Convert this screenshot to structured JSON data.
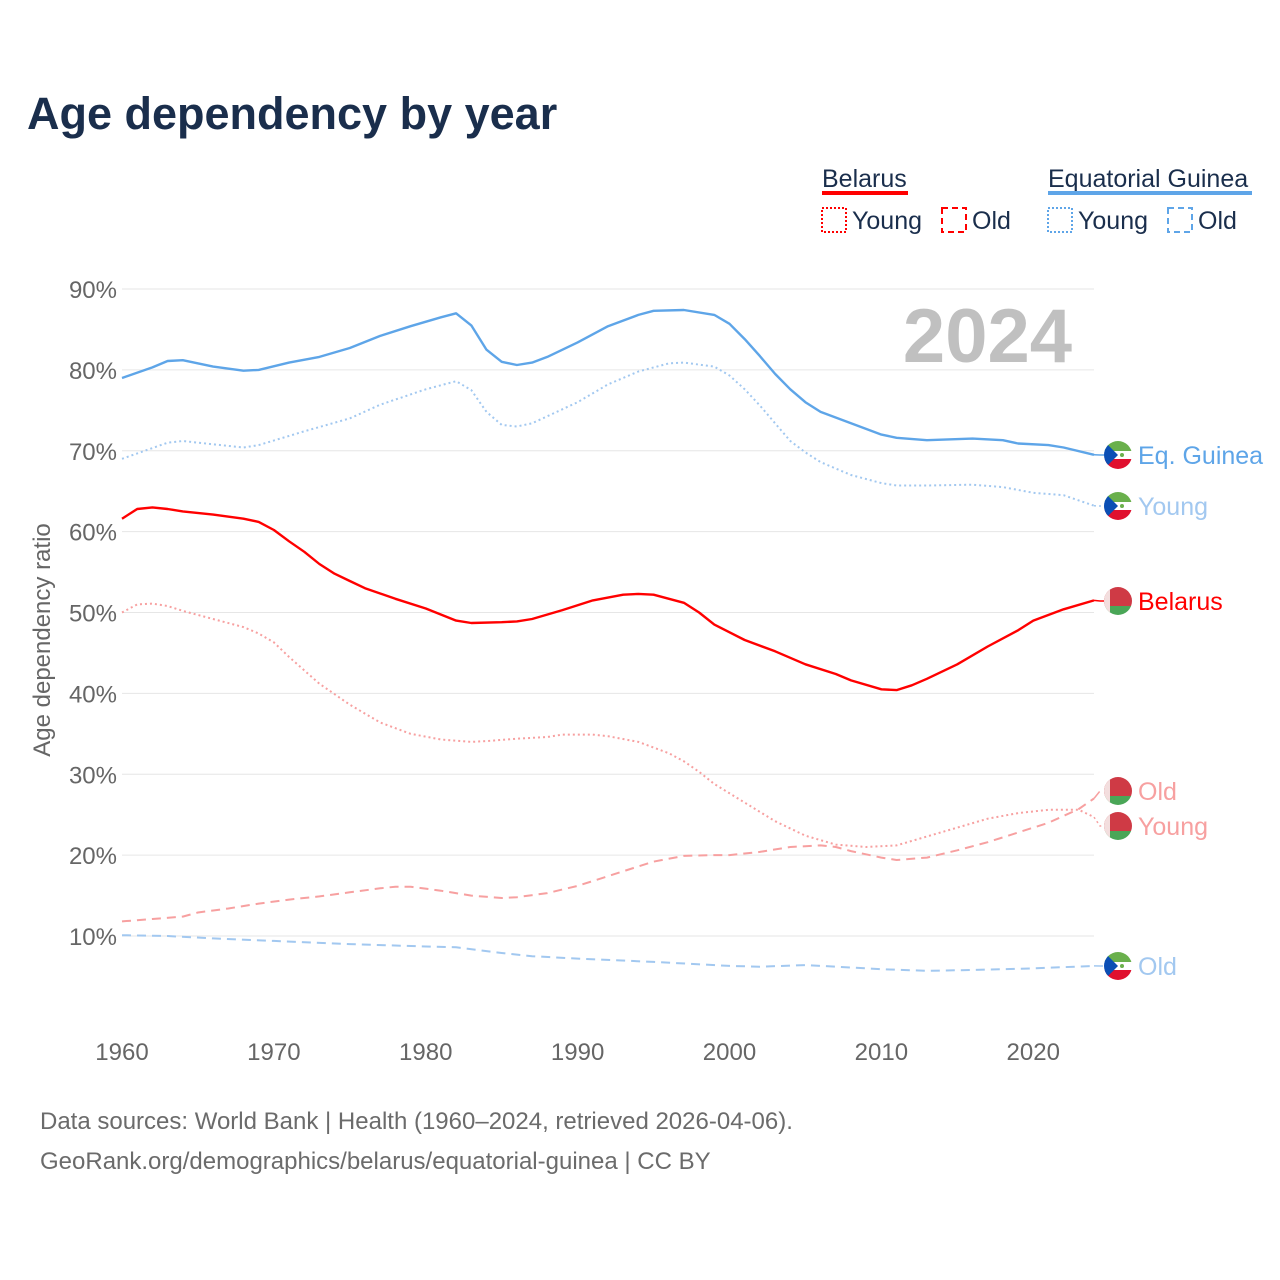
{
  "title": "Age dependency by year",
  "sources": [
    "Data sources: World Bank | Health (1960–2024, retrieved 2026-04-06).",
    "GeoRank.org/demographics/belarus/equatorial-guinea | CC BY"
  ],
  "legend": {
    "groups": [
      {
        "name": "Belarus",
        "color": "#ff0000",
        "items": [
          "Young",
          "Old"
        ]
      },
      {
        "name": "Equatorial Guinea",
        "color": "#5ea5e8",
        "items": [
          "Young",
          "Old"
        ]
      }
    ]
  },
  "chart_data": {
    "type": "line",
    "title": "Age dependency by year",
    "ylabel": "Age dependency ratio",
    "xlabel": "",
    "year_watermark": "2024",
    "xlim": [
      1960,
      2024
    ],
    "ylim": [
      0,
      90
    ],
    "xticks": [
      1960,
      1970,
      1980,
      1990,
      2000,
      2010,
      2020
    ],
    "yticks": [
      10,
      20,
      30,
      40,
      50,
      60,
      70,
      80,
      90
    ],
    "ytick_labels": [
      "10%",
      "20%",
      "30%",
      "40%",
      "50%",
      "60%",
      "70%",
      "80%",
      "90%"
    ],
    "grid": true,
    "series": [
      {
        "name": "Eq. Guinea",
        "label": "Eq. Guinea",
        "country": "Equatorial Guinea",
        "kind": "total",
        "color": "#5ea5e8",
        "dash": "solid",
        "points": [
          [
            1960,
            79.0
          ],
          [
            1962,
            80.3
          ],
          [
            1963,
            81.1
          ],
          [
            1964,
            81.2
          ],
          [
            1966,
            80.4
          ],
          [
            1968,
            79.9
          ],
          [
            1969,
            80.0
          ],
          [
            1971,
            80.9
          ],
          [
            1973,
            81.6
          ],
          [
            1975,
            82.7
          ],
          [
            1977,
            84.2
          ],
          [
            1979,
            85.4
          ],
          [
            1981,
            86.5
          ],
          [
            1982,
            87.0
          ],
          [
            1983,
            85.5
          ],
          [
            1984,
            82.5
          ],
          [
            1985,
            81.0
          ],
          [
            1986,
            80.6
          ],
          [
            1987,
            80.9
          ],
          [
            1988,
            81.6
          ],
          [
            1990,
            83.4
          ],
          [
            1992,
            85.4
          ],
          [
            1994,
            86.8
          ],
          [
            1995,
            87.3
          ],
          [
            1997,
            87.4
          ],
          [
            1999,
            86.8
          ],
          [
            2000,
            85.7
          ],
          [
            2001,
            83.8
          ],
          [
            2002,
            81.7
          ],
          [
            2003,
            79.5
          ],
          [
            2004,
            77.6
          ],
          [
            2005,
            76.0
          ],
          [
            2006,
            74.8
          ],
          [
            2008,
            73.4
          ],
          [
            2010,
            72.0
          ],
          [
            2011,
            71.6
          ],
          [
            2013,
            71.3
          ],
          [
            2016,
            71.5
          ],
          [
            2018,
            71.3
          ],
          [
            2019,
            70.9
          ],
          [
            2021,
            70.7
          ],
          [
            2022,
            70.4
          ],
          [
            2024,
            69.5
          ]
        ]
      },
      {
        "name": "Eq. Guinea Young",
        "label": "Young",
        "country": "Equatorial Guinea",
        "kind": "young",
        "color": "#a2c8f0",
        "dash": "dotted",
        "points": [
          [
            1960,
            69.0
          ],
          [
            1963,
            71.0
          ],
          [
            1964,
            71.2
          ],
          [
            1966,
            70.8
          ],
          [
            1968,
            70.4
          ],
          [
            1969,
            70.7
          ],
          [
            1972,
            72.4
          ],
          [
            1975,
            74.0
          ],
          [
            1977,
            75.7
          ],
          [
            1980,
            77.6
          ],
          [
            1982,
            78.6
          ],
          [
            1983,
            77.5
          ],
          [
            1984,
            74.8
          ],
          [
            1985,
            73.2
          ],
          [
            1986,
            73.0
          ],
          [
            1987,
            73.4
          ],
          [
            1990,
            76.0
          ],
          [
            1992,
            78.2
          ],
          [
            1994,
            79.8
          ],
          [
            1996,
            80.8
          ],
          [
            1997,
            80.9
          ],
          [
            1999,
            80.4
          ],
          [
            2000,
            79.3
          ],
          [
            2001,
            77.6
          ],
          [
            2002,
            75.6
          ],
          [
            2003,
            73.4
          ],
          [
            2004,
            71.2
          ],
          [
            2005,
            69.8
          ],
          [
            2006,
            68.6
          ],
          [
            2008,
            67.0
          ],
          [
            2010,
            66.0
          ],
          [
            2011,
            65.7
          ],
          [
            2013,
            65.7
          ],
          [
            2016,
            65.8
          ],
          [
            2018,
            65.5
          ],
          [
            2020,
            64.8
          ],
          [
            2022,
            64.5
          ],
          [
            2024,
            63.2
          ]
        ]
      },
      {
        "name": "Eq. Guinea Old",
        "label": "Old",
        "country": "Equatorial Guinea",
        "kind": "old",
        "color": "#a2c8f0",
        "dash": "dashed",
        "points": [
          [
            1960,
            10.1
          ],
          [
            1963,
            10.0
          ],
          [
            1966,
            9.7
          ],
          [
            1970,
            9.4
          ],
          [
            1975,
            9.0
          ],
          [
            1980,
            8.7
          ],
          [
            1982,
            8.6
          ],
          [
            1985,
            7.9
          ],
          [
            1987,
            7.5
          ],
          [
            1990,
            7.2
          ],
          [
            1995,
            6.8
          ],
          [
            2000,
            6.3
          ],
          [
            2002,
            6.2
          ],
          [
            2005,
            6.4
          ],
          [
            2008,
            6.1
          ],
          [
            2010,
            5.9
          ],
          [
            2013,
            5.7
          ],
          [
            2016,
            5.8
          ],
          [
            2020,
            6.0
          ],
          [
            2024,
            6.3
          ]
        ]
      },
      {
        "name": "Belarus",
        "label": "Belarus",
        "country": "Belarus",
        "kind": "total",
        "color": "#ff0000",
        "dash": "solid",
        "points": [
          [
            1960,
            61.6
          ],
          [
            1961,
            62.8
          ],
          [
            1962,
            63.0
          ],
          [
            1963,
            62.8
          ],
          [
            1964,
            62.5
          ],
          [
            1966,
            62.1
          ],
          [
            1968,
            61.6
          ],
          [
            1969,
            61.2
          ],
          [
            1970,
            60.2
          ],
          [
            1971,
            58.8
          ],
          [
            1972,
            57.5
          ],
          [
            1973,
            56.0
          ],
          [
            1974,
            54.8
          ],
          [
            1975,
            53.9
          ],
          [
            1976,
            53.0
          ],
          [
            1978,
            51.7
          ],
          [
            1980,
            50.5
          ],
          [
            1982,
            49.0
          ],
          [
            1983,
            48.7
          ],
          [
            1985,
            48.8
          ],
          [
            1986,
            48.9
          ],
          [
            1987,
            49.2
          ],
          [
            1989,
            50.3
          ],
          [
            1991,
            51.5
          ],
          [
            1993,
            52.2
          ],
          [
            1994,
            52.3
          ],
          [
            1995,
            52.2
          ],
          [
            1997,
            51.2
          ],
          [
            1998,
            50.0
          ],
          [
            1999,
            48.5
          ],
          [
            2001,
            46.6
          ],
          [
            2003,
            45.2
          ],
          [
            2005,
            43.6
          ],
          [
            2007,
            42.4
          ],
          [
            2008,
            41.6
          ],
          [
            2010,
            40.5
          ],
          [
            2011,
            40.4
          ],
          [
            2012,
            41.0
          ],
          [
            2013,
            41.8
          ],
          [
            2015,
            43.6
          ],
          [
            2017,
            45.8
          ],
          [
            2019,
            47.8
          ],
          [
            2020,
            49.0
          ],
          [
            2022,
            50.4
          ],
          [
            2024,
            51.5
          ]
        ]
      },
      {
        "name": "Belarus Young",
        "label": "Young",
        "country": "Belarus",
        "kind": "young",
        "color": "#f7a0a0",
        "dash": "dotted",
        "points": [
          [
            1960,
            50.0
          ],
          [
            1961,
            51.0
          ],
          [
            1962,
            51.1
          ],
          [
            1963,
            50.8
          ],
          [
            1964,
            50.2
          ],
          [
            1966,
            49.2
          ],
          [
            1968,
            48.2
          ],
          [
            1969,
            47.4
          ],
          [
            1970,
            46.3
          ],
          [
            1971,
            44.5
          ],
          [
            1973,
            41.2
          ],
          [
            1975,
            38.6
          ],
          [
            1977,
            36.4
          ],
          [
            1979,
            35.0
          ],
          [
            1981,
            34.3
          ],
          [
            1983,
            34.0
          ],
          [
            1984,
            34.1
          ],
          [
            1986,
            34.4
          ],
          [
            1988,
            34.6
          ],
          [
            1989,
            34.9
          ],
          [
            1991,
            34.9
          ],
          [
            1992,
            34.7
          ],
          [
            1994,
            34.0
          ],
          [
            1996,
            32.6
          ],
          [
            1997,
            31.6
          ],
          [
            1998,
            30.3
          ],
          [
            1999,
            28.8
          ],
          [
            2001,
            26.5
          ],
          [
            2003,
            24.2
          ],
          [
            2005,
            22.4
          ],
          [
            2007,
            21.3
          ],
          [
            2009,
            21.0
          ],
          [
            2011,
            21.2
          ],
          [
            2013,
            22.3
          ],
          [
            2015,
            23.4
          ],
          [
            2017,
            24.5
          ],
          [
            2019,
            25.2
          ],
          [
            2021,
            25.6
          ],
          [
            2023,
            25.6
          ],
          [
            2024,
            24.7
          ]
        ]
      },
      {
        "name": "Belarus Old",
        "label": "Old",
        "country": "Belarus",
        "kind": "old",
        "color": "#f7a0a0",
        "dash": "dashed",
        "points": [
          [
            1960,
            11.8
          ],
          [
            1962,
            12.1
          ],
          [
            1964,
            12.4
          ],
          [
            1965,
            12.9
          ],
          [
            1967,
            13.4
          ],
          [
            1969,
            14.0
          ],
          [
            1971,
            14.5
          ],
          [
            1973,
            14.9
          ],
          [
            1975,
            15.4
          ],
          [
            1977,
            15.9
          ],
          [
            1978,
            16.1
          ],
          [
            1979,
            16.1
          ],
          [
            1981,
            15.6
          ],
          [
            1983,
            15.0
          ],
          [
            1985,
            14.7
          ],
          [
            1986,
            14.8
          ],
          [
            1988,
            15.3
          ],
          [
            1990,
            16.2
          ],
          [
            1992,
            17.4
          ],
          [
            1994,
            18.6
          ],
          [
            1995,
            19.2
          ],
          [
            1997,
            19.9
          ],
          [
            1999,
            20.0
          ],
          [
            2000,
            20.0
          ],
          [
            2002,
            20.4
          ],
          [
            2004,
            21.0
          ],
          [
            2006,
            21.2
          ],
          [
            2007,
            21.0
          ],
          [
            2008,
            20.5
          ],
          [
            2010,
            19.7
          ],
          [
            2011,
            19.4
          ],
          [
            2013,
            19.7
          ],
          [
            2015,
            20.6
          ],
          [
            2017,
            21.6
          ],
          [
            2019,
            22.8
          ],
          [
            2021,
            24.0
          ],
          [
            2023,
            25.7
          ],
          [
            2024,
            27.0
          ]
        ]
      }
    ]
  }
}
